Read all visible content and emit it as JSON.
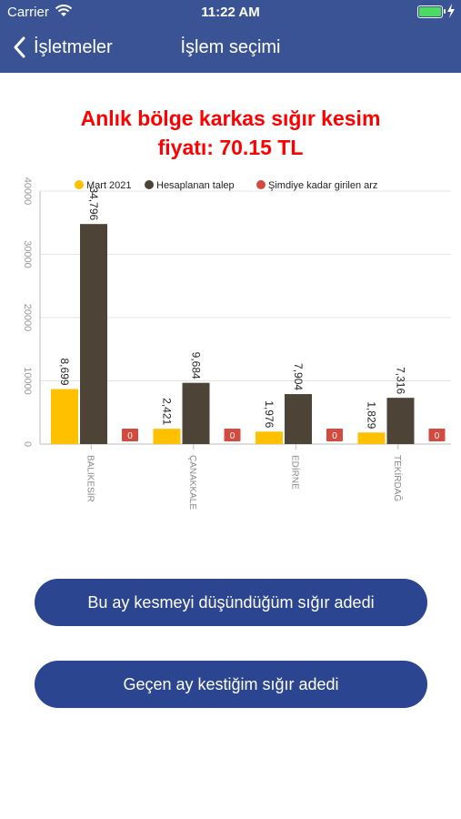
{
  "status_bar": {
    "carrier": "Carrier",
    "time": "11:22 AM"
  },
  "nav": {
    "back_label": "İşletmeler",
    "title": "İşlem seçimi"
  },
  "headline": {
    "line1": "Anlık bölge karkas sığır kesim",
    "line2": "fiyatı: 70.15 TL"
  },
  "chart_data": {
    "type": "bar",
    "title": "",
    "xlabel": "",
    "ylabel": "",
    "categories": [
      "BALIKESİR",
      "ÇANAKKALE",
      "EDİRNE",
      "TEKİRDAĞ"
    ],
    "series": [
      {
        "name": "Mart 2021",
        "color": "#ffc000",
        "values": [
          8699,
          2421,
          1976,
          1829
        ],
        "labels": [
          "8,699",
          "2,421",
          "1,976",
          "1,829"
        ]
      },
      {
        "name": "Hesaplanan talep",
        "color": "#4d4437",
        "values": [
          34796,
          9684,
          7904,
          7316
        ],
        "labels": [
          "34,796",
          "9,684",
          "7,904",
          "7,316"
        ]
      },
      {
        "name": "Şimdiye kadar girilen arz",
        "color": "#d34a3f",
        "values": [
          0,
          0,
          0,
          0
        ],
        "labels": [
          "0",
          "0",
          "0",
          "0"
        ]
      }
    ],
    "ylim": [
      0,
      40000
    ],
    "yticks": [
      0,
      10000,
      20000,
      30000,
      40000
    ],
    "grid": true,
    "legend_position": "top"
  },
  "buttons": {
    "this_month": "Bu ay kesmeyi düşündüğüm sığır adedi",
    "last_month": "Geçen ay kestiğim sığır adedi"
  },
  "colors": {
    "nav_bg": "#3a5394",
    "button_bg": "#2b4590",
    "headline": "#ff0000"
  }
}
